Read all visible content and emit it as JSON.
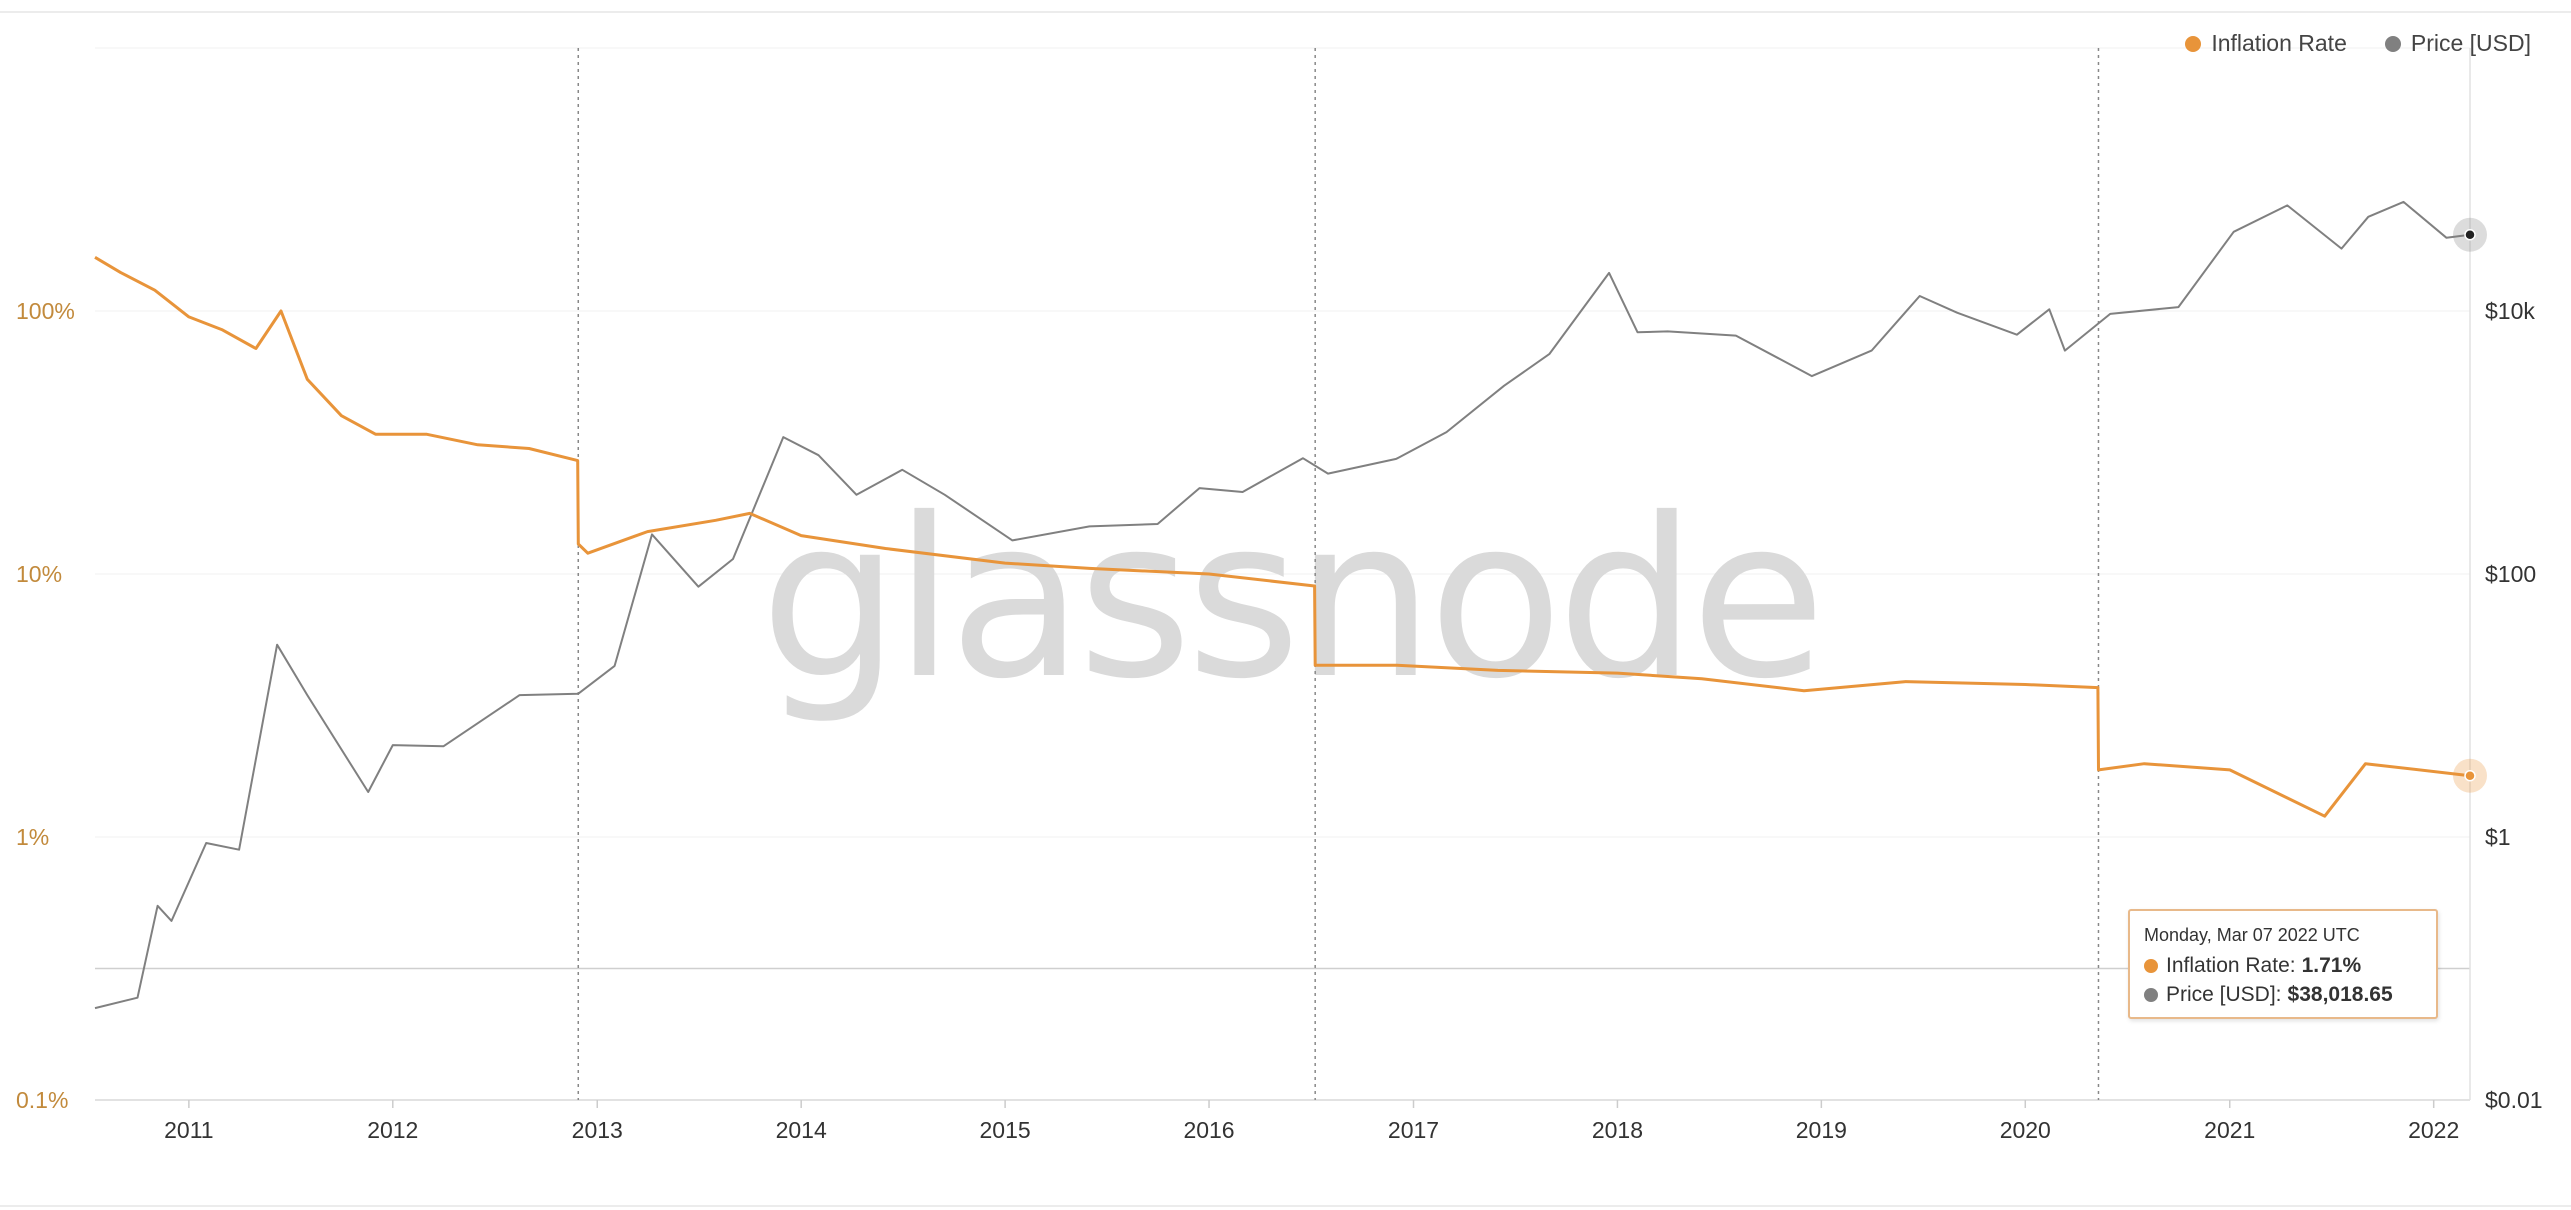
{
  "watermark": "glassnode",
  "legend": {
    "items": [
      {
        "label": "Inflation Rate",
        "color": "#e8943a"
      },
      {
        "label": "Price [USD]",
        "color": "#808080"
      }
    ]
  },
  "tooltip": {
    "date": "Monday, Mar 07 2022 UTC",
    "inflation_label": "Inflation Rate:",
    "inflation_value": "1.71%",
    "price_label": "Price [USD]:",
    "price_value": "$38,018.65"
  },
  "chart_data": {
    "type": "line",
    "x_axis": {
      "type": "date",
      "range": [
        "2010-07-17",
        "2022-03-07"
      ],
      "tick_labels": [
        "2011",
        "2012",
        "2013",
        "2014",
        "2015",
        "2016",
        "2017",
        "2018",
        "2019",
        "2020",
        "2021",
        "2022"
      ]
    },
    "y_left": {
      "scale": "log",
      "range": [
        0.1,
        1000
      ],
      "tick_values": [
        0.1,
        1,
        10,
        100
      ],
      "tick_labels": [
        "0.1%",
        "1%",
        "10%",
        "100%"
      ],
      "color": "#c28a3c"
    },
    "y_right": {
      "scale": "log",
      "range": [
        0.01,
        1000000
      ],
      "tick_values": [
        0.01,
        1,
        100,
        10000
      ],
      "tick_labels": [
        "$0.01",
        "$1",
        "$100",
        "$10k"
      ],
      "color": "#333333"
    },
    "halving_dates": [
      "2012-11-28",
      "2016-07-09",
      "2020-05-11"
    ],
    "series": [
      {
        "name": "Inflation Rate",
        "axis": "left",
        "color": "#e8943a",
        "unit": "%",
        "points": [
          [
            "2010-07-17",
            160
          ],
          [
            "2010-09-01",
            140
          ],
          [
            "2010-11-01",
            120
          ],
          [
            "2011-01-01",
            95
          ],
          [
            "2011-03-01",
            85
          ],
          [
            "2011-05-01",
            72
          ],
          [
            "2011-06-15",
            100
          ],
          [
            "2011-08-01",
            55
          ],
          [
            "2011-10-01",
            40
          ],
          [
            "2011-12-01",
            34
          ],
          [
            "2012-03-01",
            34
          ],
          [
            "2012-06-01",
            31
          ],
          [
            "2012-09-01",
            30
          ],
          [
            "2012-11-27",
            27
          ],
          [
            "2012-11-28",
            13
          ],
          [
            "2012-12-15",
            12
          ],
          [
            "2013-04-01",
            14.5
          ],
          [
            "2013-08-01",
            16
          ],
          [
            "2013-10-01",
            17
          ],
          [
            "2014-01-01",
            14
          ],
          [
            "2014-06-01",
            12.5
          ],
          [
            "2015-01-01",
            11
          ],
          [
            "2015-06-01",
            10.5
          ],
          [
            "2016-01-01",
            10
          ],
          [
            "2016-07-08",
            9
          ],
          [
            "2016-07-09",
            4.5
          ],
          [
            "2016-12-01",
            4.5
          ],
          [
            "2017-06-01",
            4.3
          ],
          [
            "2018-01-01",
            4.2
          ],
          [
            "2018-06-01",
            4.0
          ],
          [
            "2018-12-01",
            3.6
          ],
          [
            "2019-06-01",
            3.9
          ],
          [
            "2020-01-01",
            3.8
          ],
          [
            "2020-05-10",
            3.7
          ],
          [
            "2020-05-11",
            1.8
          ],
          [
            "2020-08-01",
            1.9
          ],
          [
            "2021-01-01",
            1.8
          ],
          [
            "2021-06-20",
            1.2
          ],
          [
            "2021-09-01",
            1.9
          ],
          [
            "2022-03-07",
            1.71
          ]
        ]
      },
      {
        "name": "Price [USD]",
        "axis": "right",
        "color": "#808080",
        "unit": "USD",
        "points": [
          [
            "2010-07-17",
            0.05
          ],
          [
            "2010-10-01",
            0.06
          ],
          [
            "2010-11-06",
            0.3
          ],
          [
            "2010-12-01",
            0.23
          ],
          [
            "2011-02-01",
            0.9
          ],
          [
            "2011-04-01",
            0.8
          ],
          [
            "2011-06-08",
            29
          ],
          [
            "2011-08-01",
            12
          ],
          [
            "2011-11-18",
            2.2
          ],
          [
            "2012-01-01",
            5
          ],
          [
            "2012-04-01",
            4.9
          ],
          [
            "2012-08-15",
            12
          ],
          [
            "2012-11-28",
            12.3
          ],
          [
            "2013-02-01",
            20
          ],
          [
            "2013-04-09",
            200
          ],
          [
            "2013-07-01",
            80
          ],
          [
            "2013-09-01",
            130
          ],
          [
            "2013-11-30",
            1100
          ],
          [
            "2014-02-01",
            800
          ],
          [
            "2014-04-10",
            400
          ],
          [
            "2014-07-01",
            620
          ],
          [
            "2014-09-15",
            400
          ],
          [
            "2015-01-14",
            180
          ],
          [
            "2015-06-01",
            230
          ],
          [
            "2015-10-01",
            240
          ],
          [
            "2015-12-15",
            450
          ],
          [
            "2016-03-01",
            420
          ],
          [
            "2016-06-17",
            760
          ],
          [
            "2016-08-01",
            580
          ],
          [
            "2016-12-01",
            750
          ],
          [
            "2017-03-01",
            1200
          ],
          [
            "2017-06-12",
            2700
          ],
          [
            "2017-09-01",
            4700
          ],
          [
            "2017-12-17",
            19500
          ],
          [
            "2018-02-06",
            6900
          ],
          [
            "2018-04-01",
            7000
          ],
          [
            "2018-08-01",
            6500
          ],
          [
            "2018-12-15",
            3200
          ],
          [
            "2019-04-01",
            5000
          ],
          [
            "2019-06-26",
            13000
          ],
          [
            "2019-09-01",
            9700
          ],
          [
            "2019-12-17",
            6600
          ],
          [
            "2020-02-13",
            10300
          ],
          [
            "2020-03-12",
            5000
          ],
          [
            "2020-06-01",
            9500
          ],
          [
            "2020-10-01",
            10700
          ],
          [
            "2021-01-08",
            40000
          ],
          [
            "2021-04-14",
            63500
          ],
          [
            "2021-07-20",
            29800
          ],
          [
            "2021-09-06",
            52000
          ],
          [
            "2021-11-08",
            67500
          ],
          [
            "2022-01-24",
            36000
          ],
          [
            "2022-03-07",
            38018.65
          ]
        ]
      }
    ],
    "current_markers": [
      {
        "series": "Inflation Rate",
        "date": "2022-03-07",
        "value": 1.71
      },
      {
        "series": "Price [USD]",
        "date": "2022-03-07",
        "value": 38018.65
      }
    ],
    "grid": true,
    "legend_position": "top-right"
  }
}
